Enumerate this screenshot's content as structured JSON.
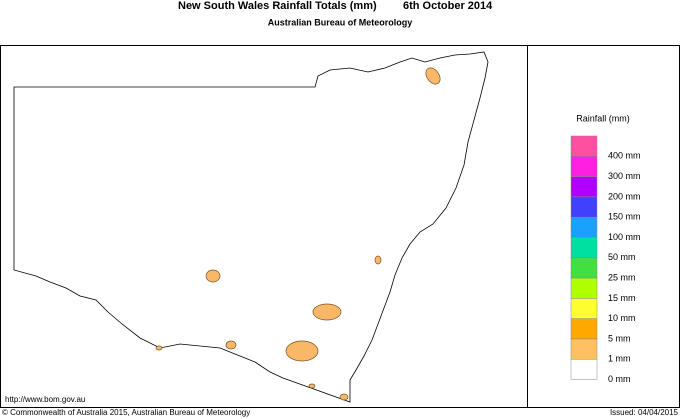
{
  "header": {
    "title": "New South Wales Rainfall Totals (mm)",
    "date": "6th October 2014",
    "subtitle": "Australian Bureau of Meteorology"
  },
  "legend": {
    "title": "Rainfall (mm)",
    "colors": [
      "#ff4fa0",
      "#ff1fe0",
      "#b000ff",
      "#4040ff",
      "#1aa0ff",
      "#00e0a0",
      "#40e040",
      "#b0ff00",
      "#ffff30",
      "#ffa800",
      "#ffc060",
      "#ffffff"
    ],
    "labels": [
      "400 mm",
      "300 mm",
      "200 mm",
      "150 mm",
      "100 mm",
      "50 mm",
      "25 mm",
      "15 mm",
      "10 mm",
      "5 mm",
      "1 mm",
      "0 mm"
    ]
  },
  "footer": {
    "url": "http://www.bom.gov.au",
    "copyright": "© Commonwealth of Australia 2015, Australian Bureau of Meteorology",
    "issued": "Issued: 04/04/2015"
  }
}
